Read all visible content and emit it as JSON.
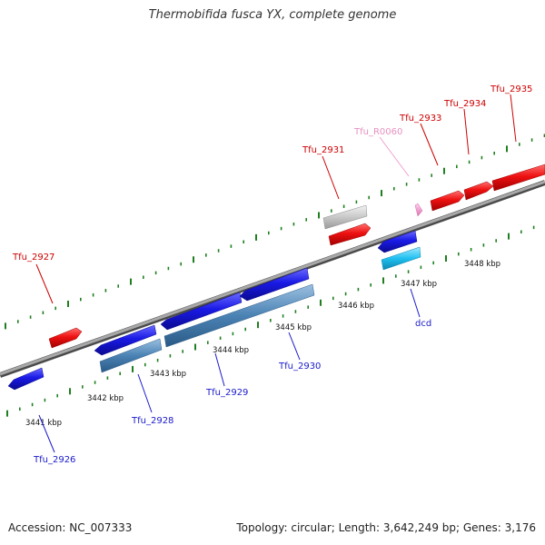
{
  "title": "Thermobifida fusca YX, complete genome",
  "footer": {
    "accession": "Accession: NC_007333",
    "summary": "Topology: circular; Length: 3,642,249 bp; Genes: 3,176"
  },
  "colors": {
    "backbone": "#808080",
    "tick": "#1f7f1f",
    "forward_gene": "#ee1111",
    "reverse_gene": "#1a1ae6",
    "reverse_dark": "#4a82b4",
    "pseudo": "#c8c8c8",
    "rna": "#f0a0d0",
    "cyan": "#20c0f0",
    "label_red": "#cc0000",
    "label_blue": "#1a1acc",
    "label_pink": "#e890c0"
  },
  "scale_labels": [
    "3441 kbp",
    "3442 kbp",
    "3443 kbp",
    "3444 kbp",
    "3445 kbp",
    "3446 kbp",
    "3447 kbp",
    "3448 kbp"
  ],
  "gene_labels": {
    "Tfu_2927": "Tfu_2927",
    "Tfu_2931": "Tfu_2931",
    "Tfu_R0060": "Tfu_R0060",
    "Tfu_2933": "Tfu_2933",
    "Tfu_2934": "Tfu_2934",
    "Tfu_2935": "Tfu_2935",
    "Tfu_2926": "Tfu_2926",
    "Tfu_2928": "Tfu_2928",
    "Tfu_2929": "Tfu_2929",
    "Tfu_2930": "Tfu_2930",
    "dcd": "dcd"
  }
}
